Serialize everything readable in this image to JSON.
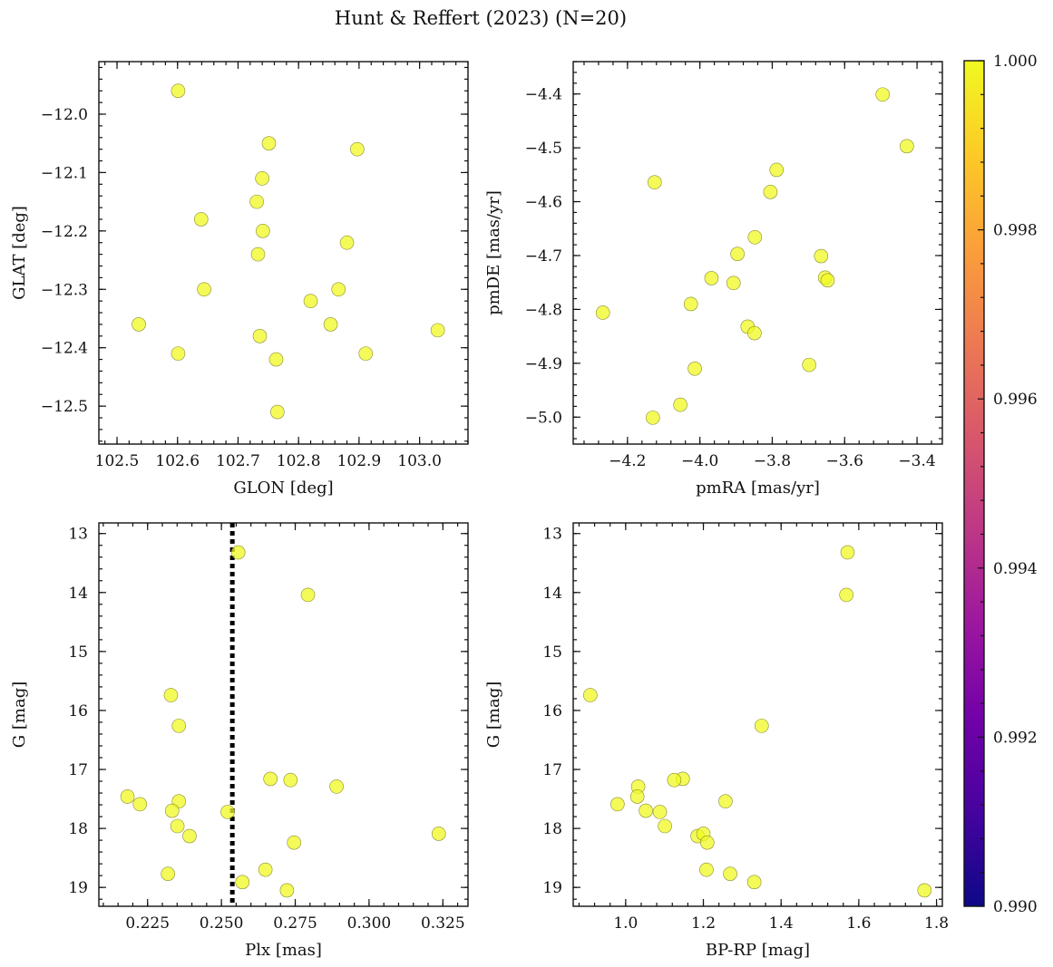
{
  "figure": {
    "title": "Hunt & Reffert (2023) (N=20)"
  },
  "colors": {
    "point": "#f0f921",
    "point_edge": "#8a8a30",
    "guide_line": "#000000"
  },
  "chart_data": [
    {
      "type": "scatter",
      "id": "pos",
      "xlabel": "GLON [deg]",
      "ylabel": "GLAT [deg]",
      "xlim": [
        102.47,
        103.08
      ],
      "ylim": [
        -12.565,
        -11.91
      ],
      "xticks": [
        102.5,
        102.6,
        102.7,
        102.8,
        102.9,
        103.0
      ],
      "xticklabels": [
        "102.5",
        "102.6",
        "102.7",
        "102.8",
        "102.9",
        "103.0"
      ],
      "yticks": [
        -12.0,
        -12.1,
        -12.2,
        -12.3,
        -12.4,
        -12.5
      ],
      "yticklabels": [
        "−12.0",
        "−12.1",
        "−12.2",
        "−12.3",
        "−12.4",
        "−12.5"
      ],
      "x": [
        102.601,
        102.751,
        102.897,
        102.74,
        102.731,
        102.741,
        102.639,
        102.88,
        102.733,
        102.644,
        102.866,
        102.82,
        102.853,
        102.536,
        103.03,
        102.736,
        102.601,
        102.911,
        102.763,
        102.765
      ],
      "y": [
        -11.96,
        -12.05,
        -12.06,
        -12.11,
        -12.15,
        -12.2,
        -12.18,
        -12.22,
        -12.24,
        -12.3,
        -12.3,
        -12.32,
        -12.36,
        -12.36,
        -12.37,
        -12.38,
        -12.41,
        -12.41,
        -12.42,
        -12.51
      ]
    },
    {
      "type": "scatter",
      "id": "pm",
      "xlabel": "pmRA [mas/yr]",
      "ylabel": "pmDE [mas/yr]",
      "xlim": [
        -4.35,
        -3.33
      ],
      "ylim": [
        -5.05,
        -4.34
      ],
      "xticks": [
        -4.2,
        -4.0,
        -3.8,
        -3.6,
        -3.4
      ],
      "xticklabels": [
        "−4.2",
        "−4.0",
        "−3.8",
        "−3.6",
        "−3.4"
      ],
      "yticks": [
        -4.4,
        -4.5,
        -4.6,
        -4.7,
        -4.8,
        -4.9,
        -5.0
      ],
      "yticklabels": [
        "−4.4",
        "−4.5",
        "−4.6",
        "−4.7",
        "−4.8",
        "−4.9",
        "−5.0"
      ],
      "x": [
        -3.495,
        -3.428,
        -3.788,
        -3.805,
        -4.125,
        -3.848,
        -3.896,
        -3.665,
        -3.654,
        -3.647,
        -3.968,
        -3.907,
        -4.025,
        -4.268,
        -3.868,
        -3.849,
        -3.698,
        -4.014,
        -4.054,
        -4.13
      ],
      "y": [
        -4.401,
        -4.497,
        -4.541,
        -4.582,
        -4.564,
        -4.666,
        -4.697,
        -4.701,
        -4.741,
        -4.746,
        -4.742,
        -4.751,
        -4.79,
        -4.806,
        -4.832,
        -4.844,
        -4.903,
        -4.91,
        -4.977,
        -5.001
      ]
    },
    {
      "type": "scatter",
      "id": "plx",
      "xlabel": "Plx [mas]",
      "ylabel": "G [mag]",
      "xlim": [
        0.2085,
        0.3335
      ],
      "ylim": [
        19.32,
        12.82
      ],
      "xticks": [
        0.225,
        0.25,
        0.275,
        0.3,
        0.325
      ],
      "xticklabels": [
        "0.225",
        "0.250",
        "0.275",
        "0.300",
        "0.325"
      ],
      "yticks": [
        13,
        14,
        15,
        16,
        17,
        18,
        19
      ],
      "yticklabels": [
        "13",
        "14",
        "15",
        "16",
        "17",
        "18",
        "19"
      ],
      "vline": 0.2537,
      "x": [
        0.2557,
        0.2793,
        0.2329,
        0.2356,
        0.2666,
        0.2734,
        0.289,
        0.2182,
        0.2356,
        0.2224,
        0.2333,
        0.2521,
        0.2351,
        0.2392,
        0.3236,
        0.2746,
        0.2319,
        0.2649,
        0.2571,
        0.2722
      ],
      "y": [
        13.32,
        14.04,
        15.74,
        16.26,
        17.16,
        17.18,
        17.29,
        17.46,
        17.54,
        17.59,
        17.7,
        17.72,
        17.96,
        18.13,
        18.09,
        18.24,
        18.77,
        18.7,
        18.91,
        19.05
      ]
    },
    {
      "type": "scatter",
      "id": "cmd",
      "xlabel": "BP-RP [mag]",
      "ylabel": "G [mag]",
      "xlim": [
        0.865,
        1.815
      ],
      "ylim": [
        19.32,
        12.82
      ],
      "xticks": [
        1.0,
        1.2,
        1.4,
        1.6,
        1.8
      ],
      "xticklabels": [
        "1.0",
        "1.2",
        "1.4",
        "1.6",
        "1.8"
      ],
      "yticks": [
        13,
        14,
        15,
        16,
        17,
        18,
        19
      ],
      "yticklabels": [
        "13",
        "14",
        "15",
        "16",
        "17",
        "18",
        "19"
      ],
      "x": [
        1.571,
        1.568,
        0.909,
        1.35,
        1.147,
        1.125,
        1.032,
        1.03,
        1.257,
        0.979,
        1.052,
        1.088,
        1.101,
        1.185,
        1.2,
        1.21,
        1.269,
        1.208,
        1.331,
        1.769
      ],
      "y": [
        13.32,
        14.04,
        15.74,
        16.26,
        17.16,
        17.18,
        17.29,
        17.46,
        17.54,
        17.59,
        17.7,
        17.72,
        17.96,
        18.13,
        18.09,
        18.24,
        18.77,
        18.7,
        18.91,
        19.05
      ]
    }
  ],
  "colorbar": {
    "range": [
      0.99,
      1.0
    ],
    "ticks": [
      0.99,
      0.992,
      0.994,
      0.996,
      0.998,
      1.0
    ],
    "ticklabels": [
      "0.990",
      "0.992",
      "0.994",
      "0.996",
      "0.998",
      "1.000"
    ],
    "colormap": "plasma",
    "stops": [
      "#0d0887",
      "#46039f",
      "#7201a8",
      "#9c179e",
      "#bd3786",
      "#d8576b",
      "#ed7953",
      "#fb9f3a",
      "#fdca26",
      "#f0f921"
    ]
  }
}
